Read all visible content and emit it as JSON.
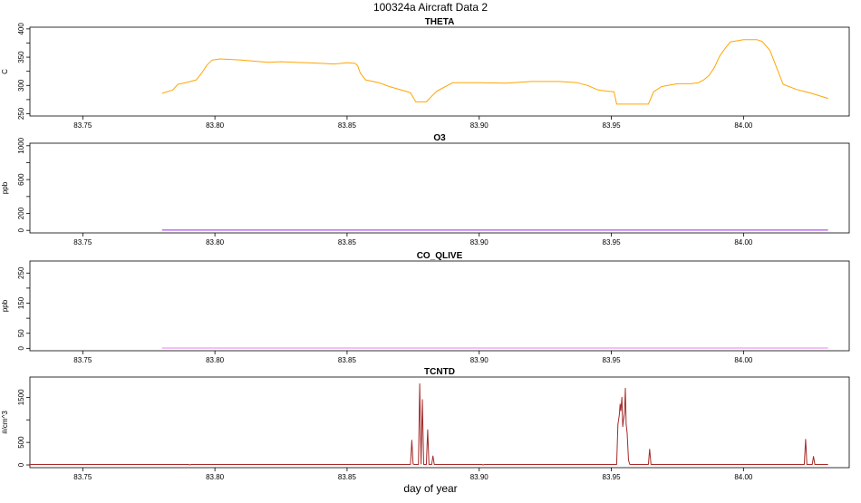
{
  "figure": {
    "title": "100324a   Aircraft Data 2",
    "xlabel": "day of year"
  },
  "colors": {
    "theta": "#ffa500",
    "o3": "#a020f0",
    "co": "#ee82ee",
    "tcntd": "#a52a2a"
  },
  "chart_data": [
    {
      "type": "line",
      "title": "THETA",
      "ylabel": "C",
      "xlim": [
        83.73,
        84.04
      ],
      "ylim": [
        246,
        403
      ],
      "xticks": [
        "83.75",
        "83.80",
        "83.85",
        "83.90",
        "83.95",
        "84.00"
      ],
      "yticks": [
        "250",
        "300",
        "350",
        "400"
      ],
      "yticks_minor": [
        275,
        325,
        375
      ],
      "series": [
        {
          "color": "#ffa500",
          "x": [
            83.78,
            83.784,
            83.786,
            83.79,
            83.793,
            83.795,
            83.797,
            83.799,
            83.802,
            83.806,
            83.81,
            83.815,
            83.82,
            83.825,
            83.83,
            83.835,
            83.84,
            83.845,
            83.85,
            83.853,
            83.854,
            83.855,
            83.857,
            83.862,
            83.866,
            83.869,
            83.872,
            83.874,
            83.876,
            83.878,
            83.88,
            83.882,
            83.884,
            83.89,
            83.9,
            83.91,
            83.92,
            83.93,
            83.937,
            83.941,
            83.945,
            83.948,
            83.951,
            83.952,
            83.956,
            83.96,
            83.964,
            83.965,
            83.966,
            83.969,
            83.975,
            83.98,
            83.983,
            83.985,
            83.987,
            83.989,
            83.991,
            83.993,
            83.995,
            84.0,
            84.005,
            84.007,
            84.01,
            84.015,
            84.02,
            84.025,
            84.032
          ],
          "y": [
            286,
            292,
            302,
            306,
            310,
            322,
            336,
            345,
            347,
            346,
            345,
            343,
            341,
            342,
            341,
            340,
            339,
            338,
            340,
            339,
            335,
            322,
            310,
            305,
            298,
            294,
            290,
            287,
            271,
            271,
            271,
            281,
            290,
            305,
            305,
            304,
            307,
            307,
            305,
            300,
            292,
            290,
            289,
            267,
            267,
            267,
            267,
            278,
            289,
            298,
            303,
            303,
            305,
            310,
            318,
            332,
            352,
            365,
            377,
            381,
            381,
            378,
            362,
            302,
            293,
            287,
            277
          ]
        }
      ]
    },
    {
      "type": "line",
      "title": "O3",
      "ylabel": "ppb",
      "xlim": [
        83.73,
        84.04
      ],
      "ylim": [
        -30,
        1030
      ],
      "xticks": [
        "83.75",
        "83.80",
        "83.85",
        "83.90",
        "83.95",
        "84.00"
      ],
      "yticks": [
        "0",
        "200",
        "600",
        "1000"
      ],
      "yticks_minor": [
        400,
        800
      ],
      "series": [
        {
          "color": "#a020f0",
          "x": [
            83.78,
            84.032
          ],
          "y": [
            3,
            3
          ]
        }
      ]
    },
    {
      "type": "line",
      "title": "CO_QLIVE",
      "ylabel": "ppb",
      "xlim": [
        83.73,
        84.04
      ],
      "ylim": [
        -8,
        290
      ],
      "xticks": [
        "83.75",
        "83.80",
        "83.85",
        "83.90",
        "83.95",
        "84.00"
      ],
      "yticks": [
        "0",
        "50",
        "150",
        "250"
      ],
      "yticks_minor": [
        100,
        200
      ],
      "series": [
        {
          "color": "#ee82ee",
          "x": [
            83.78,
            84.032
          ],
          "y": [
            1,
            1
          ]
        }
      ]
    },
    {
      "type": "line",
      "title": "TCNTD",
      "ylabel": "#/cm^3",
      "xlim": [
        83.73,
        84.04
      ],
      "ylim": [
        -60,
        1950
      ],
      "xticks": [
        "83.75",
        "83.80",
        "83.85",
        "83.90",
        "83.95",
        "84.00"
      ],
      "yticks": [
        "0",
        "500",
        "1500"
      ],
      "yticks_minor": [
        1000
      ],
      "series": [
        {
          "color": "#a52a2a",
          "x": [
            83.73,
            83.7795,
            83.78,
            83.79,
            83.7905,
            83.791,
            83.792,
            83.874,
            83.8745,
            83.875,
            83.8755,
            83.876,
            83.877,
            83.8775,
            83.878,
            83.8785,
            83.879,
            83.8795,
            83.88,
            83.8805,
            83.881,
            83.8815,
            83.882,
            83.8825,
            83.883,
            83.8835,
            83.884,
            83.901,
            83.9015,
            83.902,
            83.952,
            83.9525,
            83.953,
            83.9533,
            83.9536,
            83.954,
            83.9543,
            83.9546,
            83.955,
            83.9553,
            83.9556,
            83.956,
            83.9565,
            83.957,
            83.964,
            83.9645,
            83.965,
            83.966,
            84.023,
            84.0235,
            84.024,
            84.025,
            84.026,
            84.0265,
            84.027,
            84.028,
            84.032
          ],
          "y": [
            10,
            10,
            10,
            10,
            0,
            10,
            10,
            10,
            550,
            20,
            10,
            10,
            10,
            1800,
            20,
            1450,
            10,
            10,
            10,
            780,
            10,
            10,
            10,
            200,
            10,
            10,
            10,
            10,
            0,
            10,
            10,
            900,
            1100,
            1350,
            1200,
            1500,
            850,
            1000,
            1150,
            1700,
            900,
            700,
            100,
            10,
            10,
            350,
            10,
            10,
            10,
            570,
            10,
            10,
            10,
            190,
            10,
            10,
            10
          ]
        }
      ]
    }
  ]
}
